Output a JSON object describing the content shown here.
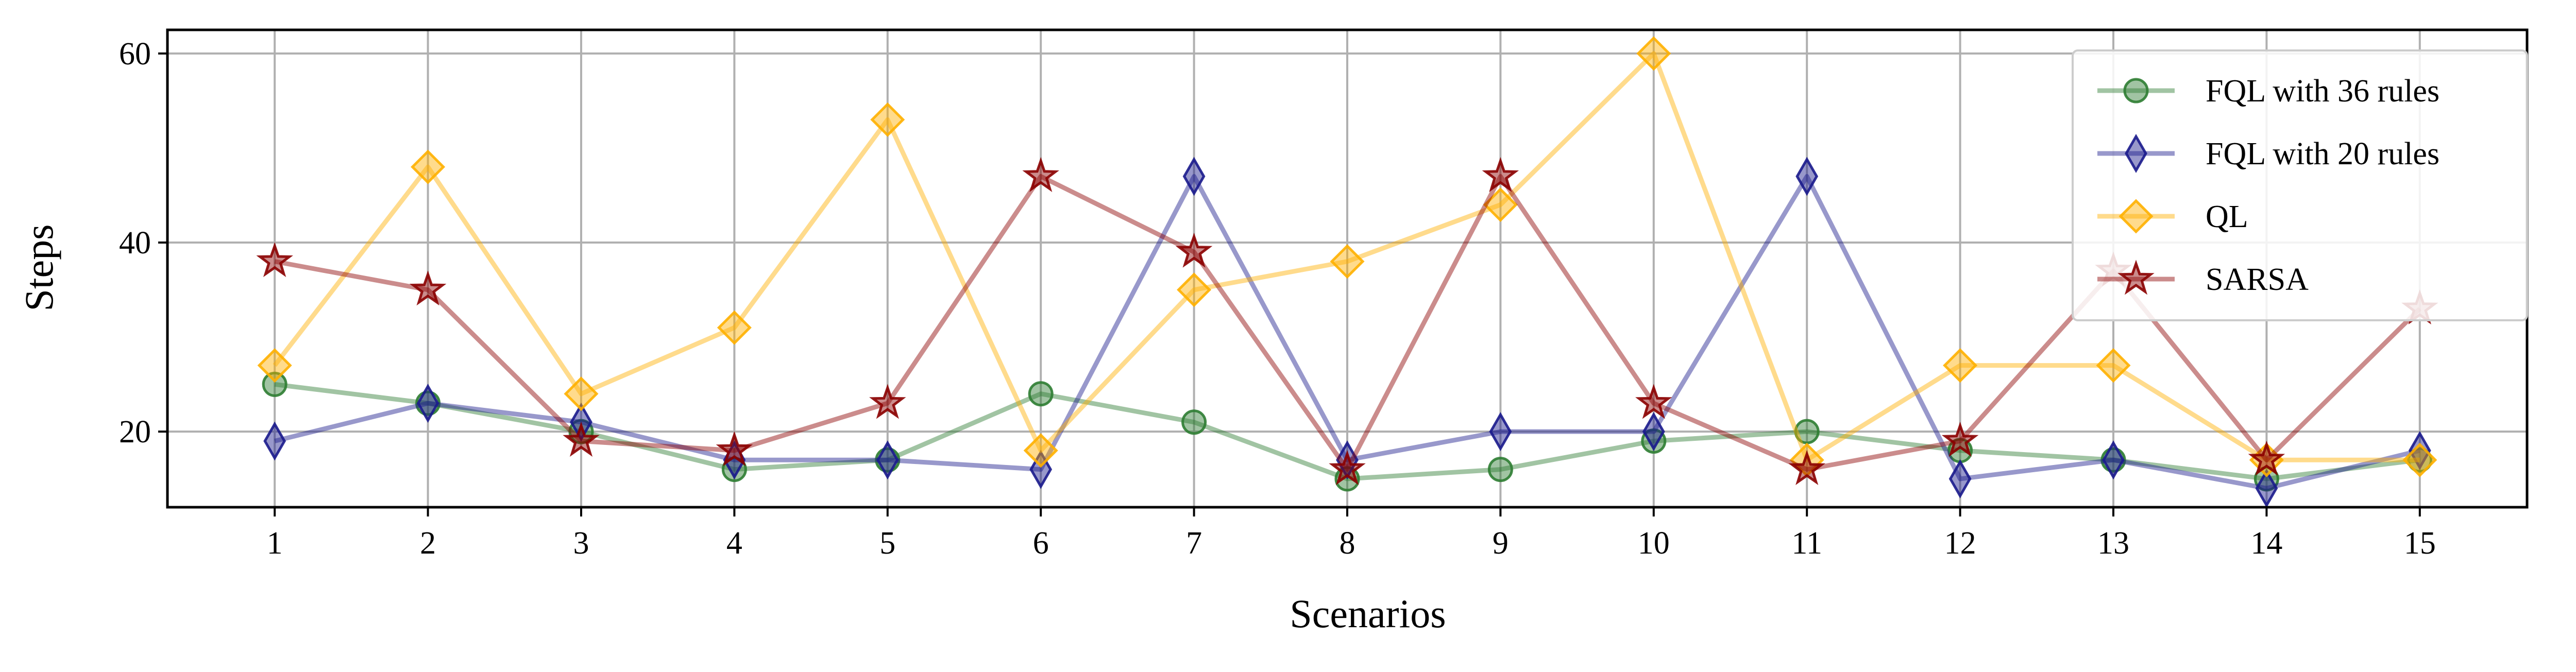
{
  "chart_data": {
    "type": "line",
    "xlabel": "Scenarios",
    "ylabel": "Steps",
    "categories": [
      1,
      2,
      3,
      4,
      5,
      6,
      7,
      8,
      9,
      10,
      11,
      12,
      13,
      14,
      15
    ],
    "xlim": [
      0.3,
      15.7
    ],
    "ylim": [
      12,
      62.5
    ],
    "yticks": [
      20,
      40,
      60
    ],
    "grid": true,
    "legend_position": "top-right",
    "series": [
      {
        "name": "FQL with 36 rules",
        "marker": "circle",
        "color": "#2e7d32",
        "values": [
          25,
          23,
          20,
          16,
          17,
          24,
          21,
          15,
          16,
          19,
          20,
          18,
          17,
          15,
          17
        ]
      },
      {
        "name": "FQL with 20 rules",
        "marker": "thin-diamond",
        "color": "#1a1a8c",
        "values": [
          19,
          23,
          21,
          17,
          17,
          16,
          47,
          17,
          20,
          20,
          47,
          15,
          17,
          14,
          18
        ]
      },
      {
        "name": "QL",
        "marker": "diamond",
        "color": "#ffb000",
        "values": [
          27,
          48,
          24,
          31,
          53,
          18,
          35,
          38,
          44,
          60,
          17,
          27,
          27,
          17,
          17
        ]
      },
      {
        "name": "SARSA",
        "marker": "star",
        "color": "#8b0000",
        "values": [
          38,
          35,
          19,
          18,
          23,
          47,
          39,
          16,
          47,
          23,
          16,
          19,
          37,
          17,
          33
        ]
      }
    ]
  }
}
